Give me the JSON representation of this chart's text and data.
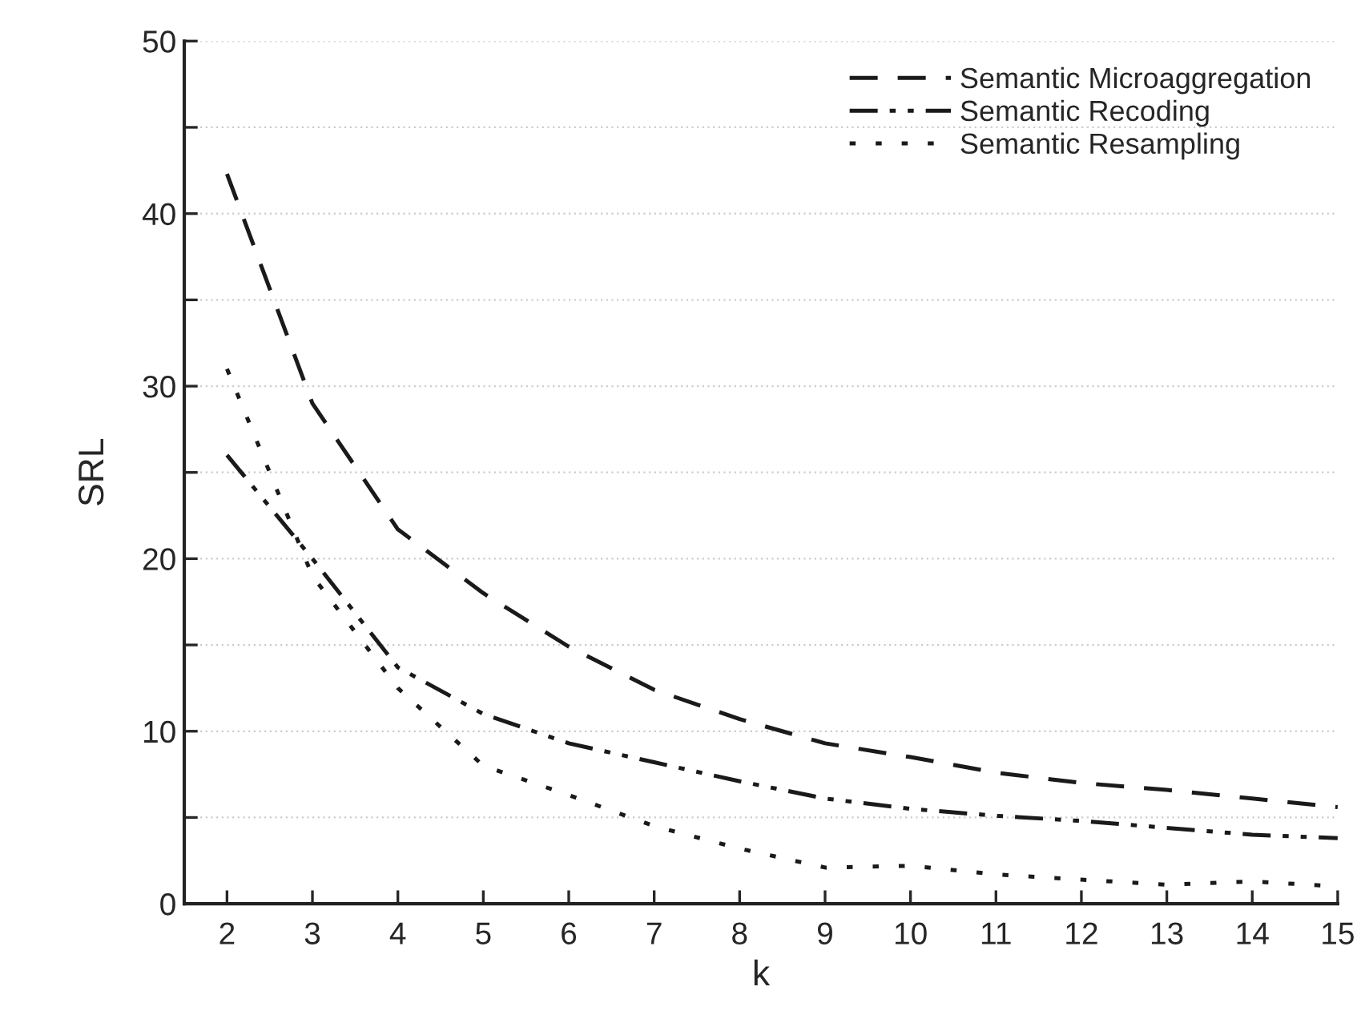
{
  "chart_data": {
    "type": "line",
    "xlabel": "k",
    "ylabel": "SRL",
    "x": [
      2,
      3,
      4,
      5,
      6,
      7,
      8,
      9,
      10,
      11,
      12,
      13,
      14,
      15
    ],
    "series": [
      {
        "name": "Semantic Microaggregation",
        "color": "#1a1a1a",
        "line_style": "dashed",
        "values": [
          42.3,
          29,
          21.7,
          18,
          14.9,
          12.4,
          10.7,
          9.3,
          8.5,
          7.6,
          7,
          6.6,
          6.1,
          5.6
        ]
      },
      {
        "name": "Semantic Recoding",
        "color": "#1a1a1a",
        "line_style": "dashdotdot",
        "values": [
          26,
          20,
          13.7,
          11,
          9.3,
          8.2,
          7.1,
          6.1,
          5.5,
          5.1,
          4.8,
          4.4,
          4,
          3.8
        ]
      },
      {
        "name": "Semantic Resampling",
        "color": "#1a1a1a",
        "line_style": "dotted",
        "values": [
          31,
          19,
          12.5,
          8,
          6.3,
          4.5,
          3.2,
          2.1,
          2.2,
          1.7,
          1.4,
          1.1,
          1.3,
          1.0
        ]
      }
    ],
    "xlim": [
      1.5,
      15
    ],
    "xticks": [
      2,
      3,
      4,
      5,
      6,
      7,
      8,
      9,
      10,
      11,
      12,
      13,
      14,
      15
    ],
    "ylim": [
      0,
      50
    ],
    "yticks": [
      0,
      {
        "value": 5,
        "label": null
      },
      10,
      {
        "value": 15,
        "label": null
      },
      20,
      {
        "value": 25,
        "label": null
      },
      30,
      {
        "value": 35,
        "label": null
      },
      40,
      {
        "value": 45,
        "label": null
      },
      50
    ],
    "grid": "y",
    "legend": "top right",
    "marker": "none"
  }
}
